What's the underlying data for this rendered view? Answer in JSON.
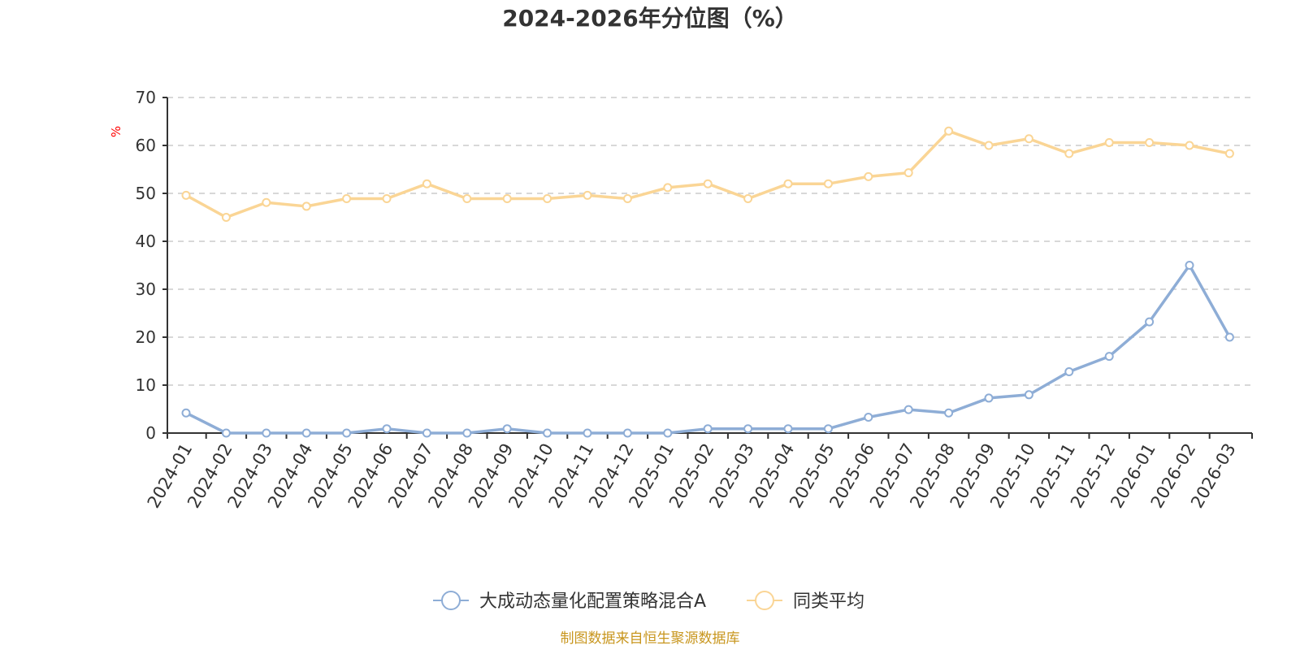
{
  "chart_data": {
    "type": "line",
    "title": "2024-2026年分位图（%）",
    "unit": "%",
    "source": "制图数据来自恒生聚源数据库",
    "x": [
      "2024-01",
      "2024-02",
      "2024-03",
      "2024-04",
      "2024-05",
      "2024-06",
      "2024-07",
      "2024-08",
      "2024-09",
      "2024-10",
      "2024-11",
      "2024-12",
      "2025-01",
      "2025-02",
      "2025-03",
      "2025-04",
      "2025-05",
      "2025-06",
      "2025-07",
      "2025-08",
      "2025-09",
      "2025-10",
      "2025-11",
      "2025-12",
      "2026-01",
      "2026-02",
      "2026-03"
    ],
    "ylim": [
      0,
      70
    ],
    "yticks": [
      0,
      10,
      20,
      30,
      40,
      50,
      60,
      70
    ],
    "grid": true,
    "legend_position": "bottom-center",
    "series": [
      {
        "name": "大成动态量化配置策略混合A",
        "color": "#8eadd6",
        "values": [
          4.2,
          0,
          0,
          0,
          0,
          0.9,
          0,
          0,
          0.9,
          0,
          0,
          0,
          0,
          0.9,
          0.9,
          0.9,
          0.9,
          3.3,
          4.9,
          4.2,
          7.3,
          8.0,
          12.8,
          16.0,
          23.2,
          35.0,
          20.0
        ]
      },
      {
        "name": "同类平均",
        "color": "#fad595",
        "values": [
          49.6,
          45.0,
          48.1,
          47.3,
          48.9,
          48.9,
          52.0,
          48.9,
          48.9,
          48.9,
          49.6,
          48.9,
          51.2,
          52.0,
          48.9,
          52.0,
          52.0,
          53.5,
          54.3,
          63.0,
          60.0,
          61.4,
          58.3,
          60.6,
          60.6,
          60.0,
          58.3
        ]
      }
    ]
  }
}
